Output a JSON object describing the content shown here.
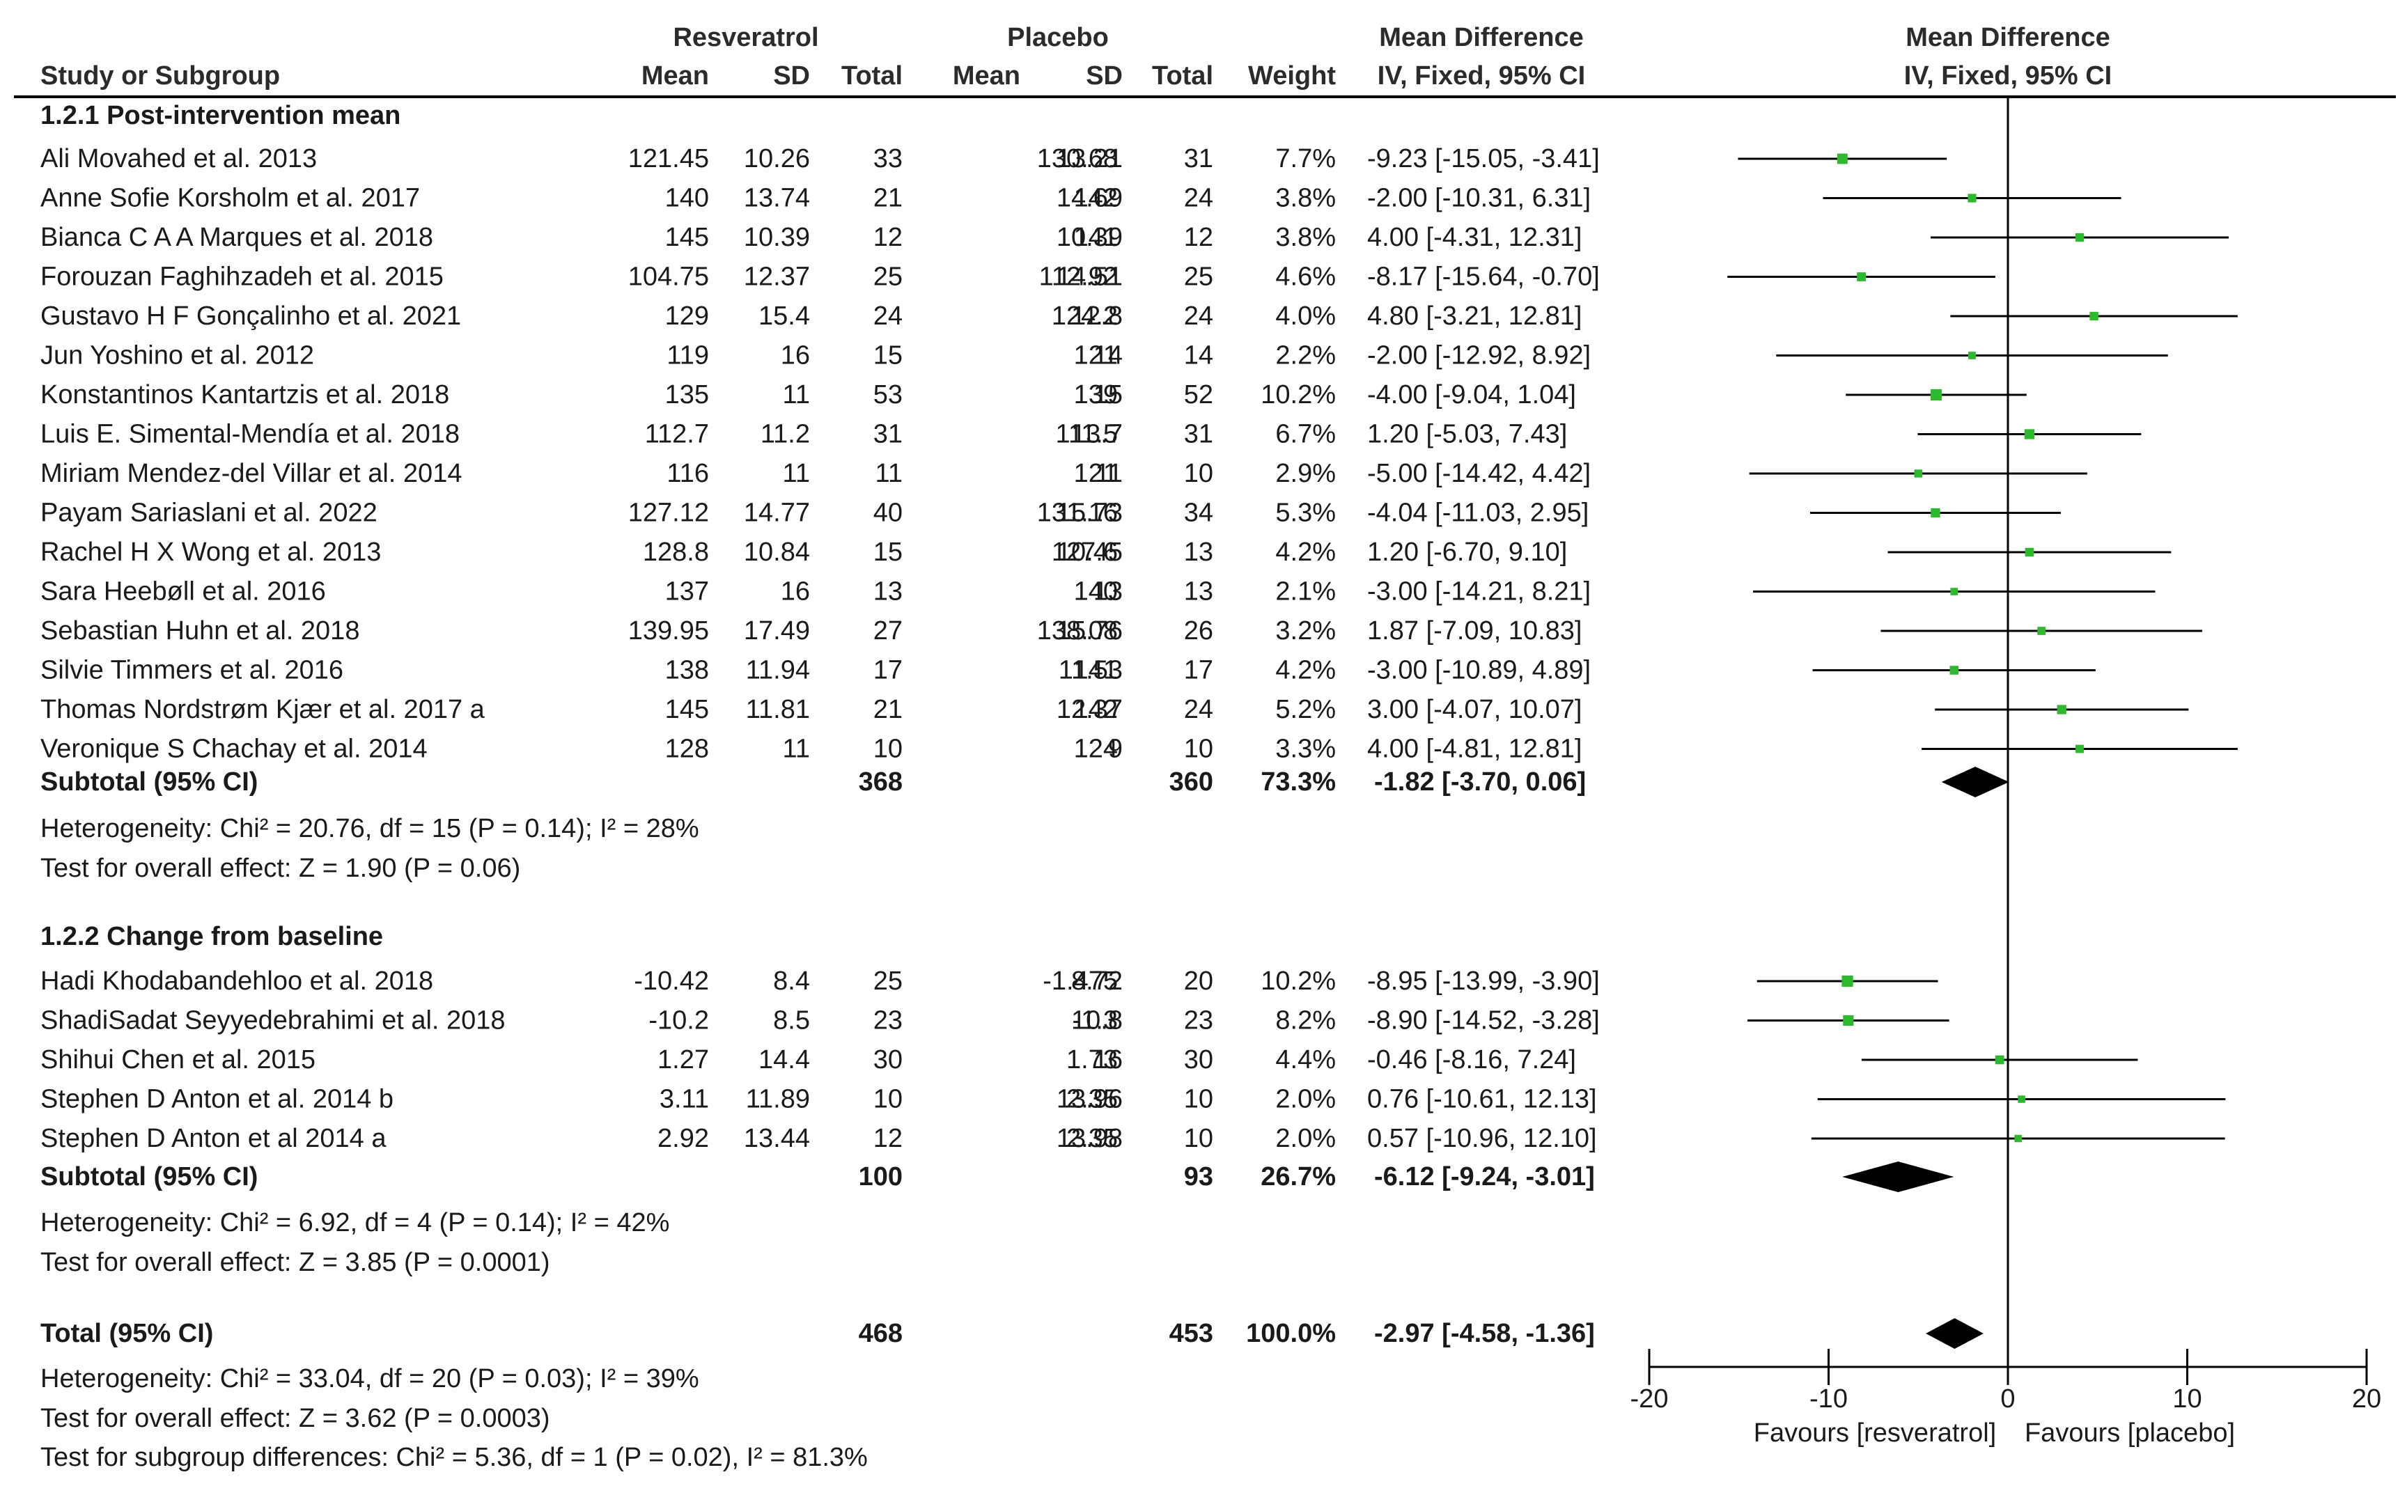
{
  "chart_data": {
    "type": "forest",
    "headers": {
      "study_col": "Study or Subgroup",
      "group1": "Resveratrol",
      "group2": "Placebo",
      "mean": "Mean",
      "sd": "SD",
      "total": "Total",
      "weight": "Weight",
      "md_table_title": "Mean Difference",
      "md_table_sub": "IV, Fixed, 95% CI",
      "md_plot_title": "Mean Difference",
      "md_plot_sub": "IV, Fixed, 95% CI"
    },
    "subgroups": [
      {
        "title": "1.2.1 Post-intervention mean",
        "studies": [
          {
            "name": "Ali Movahed et al. 2013",
            "m1": "121.45",
            "sd1": "10.26",
            "n1": "33",
            "m2": "130.68",
            "sd2": "13.21",
            "n2": "31",
            "weight": "7.7%",
            "ci": "-9.23 [-15.05, -3.41]",
            "md": -9.23,
            "lo": -15.05,
            "hi": -3.41,
            "w": 7.7
          },
          {
            "name": "Anne Sofie Korsholm et al. 2017",
            "m1": "140",
            "sd1": "13.74",
            "n1": "21",
            "m2": "142",
            "sd2": "14.69",
            "n2": "24",
            "weight": "3.8%",
            "ci": "-2.00 [-10.31, 6.31]",
            "md": -2.0,
            "lo": -10.31,
            "hi": 6.31,
            "w": 3.8
          },
          {
            "name": "Bianca C A A Marques et al. 2018",
            "m1": "145",
            "sd1": "10.39",
            "n1": "12",
            "m2": "141",
            "sd2": "10.39",
            "n2": "12",
            "weight": "3.8%",
            "ci": "4.00 [-4.31, 12.31]",
            "md": 4.0,
            "lo": -4.31,
            "hi": 12.31,
            "w": 3.8
          },
          {
            "name": "Forouzan Faghihzadeh et al. 2015",
            "m1": "104.75",
            "sd1": "12.37",
            "n1": "25",
            "m2": "112.92",
            "sd2": "14.51",
            "n2": "25",
            "weight": "4.6%",
            "ci": "-8.17 [-15.64, -0.70]",
            "md": -8.17,
            "lo": -15.64,
            "hi": -0.7,
            "w": 4.6
          },
          {
            "name": "Gustavo H F Gonçalinho et al. 2021",
            "m1": "129",
            "sd1": "15.4",
            "n1": "24",
            "m2": "124.2",
            "sd2": "12.8",
            "n2": "24",
            "weight": "4.0%",
            "ci": "4.80 [-3.21, 12.81]",
            "md": 4.8,
            "lo": -3.21,
            "hi": 12.81,
            "w": 4.0
          },
          {
            "name": "Jun Yoshino et al. 2012",
            "m1": "119",
            "sd1": "16",
            "n1": "15",
            "m2": "121",
            "sd2": "14",
            "n2": "14",
            "weight": "2.2%",
            "ci": "-2.00 [-12.92, 8.92]",
            "md": -2.0,
            "lo": -12.92,
            "hi": 8.92,
            "w": 2.2
          },
          {
            "name": "Konstantinos Kantartzis et al. 2018",
            "m1": "135",
            "sd1": "11",
            "n1": "53",
            "m2": "139",
            "sd2": "15",
            "n2": "52",
            "weight": "10.2%",
            "ci": "-4.00 [-9.04, 1.04]",
            "md": -4.0,
            "lo": -9.04,
            "hi": 1.04,
            "w": 10.2
          },
          {
            "name": "Luis E. Simental-Mendía et al. 2018",
            "m1": "112.7",
            "sd1": "11.2",
            "n1": "31",
            "m2": "111.5",
            "sd2": "13.7",
            "n2": "31",
            "weight": "6.7%",
            "ci": "1.20 [-5.03, 7.43]",
            "md": 1.2,
            "lo": -5.03,
            "hi": 7.43,
            "w": 6.7
          },
          {
            "name": "Miriam Mendez-del Villar et al. 2014",
            "m1": "116",
            "sd1": "11",
            "n1": "11",
            "m2": "121",
            "sd2": "11",
            "n2": "10",
            "weight": "2.9%",
            "ci": "-5.00 [-14.42, 4.42]",
            "md": -5.0,
            "lo": -14.42,
            "hi": 4.42,
            "w": 2.9
          },
          {
            "name": "Payam Sariaslani et al. 2022",
            "m1": "127.12",
            "sd1": "14.77",
            "n1": "40",
            "m2": "131.16",
            "sd2": "15.73",
            "n2": "34",
            "weight": "5.3%",
            "ci": "-4.04 [-11.03, 2.95]",
            "md": -4.04,
            "lo": -11.03,
            "hi": 2.95,
            "w": 5.3
          },
          {
            "name": "Rachel H X Wong et al. 2013",
            "m1": "128.8",
            "sd1": "10.84",
            "n1": "15",
            "m2": "127.6",
            "sd2": "10.45",
            "n2": "13",
            "weight": "4.2%",
            "ci": "1.20 [-6.70, 9.10]",
            "md": 1.2,
            "lo": -6.7,
            "hi": 9.1,
            "w": 4.2
          },
          {
            "name": "Sara Heebøll et al. 2016",
            "m1": "137",
            "sd1": "16",
            "n1": "13",
            "m2": "140",
            "sd2": "13",
            "n2": "13",
            "weight": "2.1%",
            "ci": "-3.00 [-14.21, 8.21]",
            "md": -3.0,
            "lo": -14.21,
            "hi": 8.21,
            "w": 2.1
          },
          {
            "name": "Sebastian Huhn et al. 2018",
            "m1": "139.95",
            "sd1": "17.49",
            "n1": "27",
            "m2": "138.08",
            "sd2": "15.76",
            "n2": "26",
            "weight": "3.2%",
            "ci": "1.87 [-7.09, 10.83]",
            "md": 1.87,
            "lo": -7.09,
            "hi": 10.83,
            "w": 3.2
          },
          {
            "name": "Silvie Timmers et al. 2016",
            "m1": "138",
            "sd1": "11.94",
            "n1": "17",
            "m2": "141",
            "sd2": "11.53",
            "n2": "17",
            "weight": "4.2%",
            "ci": "-3.00 [-10.89, 4.89]",
            "md": -3.0,
            "lo": -10.89,
            "hi": 4.89,
            "w": 4.2
          },
          {
            "name": "Thomas Nordstrøm Kjær et al. 2017 a",
            "m1": "145",
            "sd1": "11.81",
            "n1": "21",
            "m2": "142",
            "sd2": "12.37",
            "n2": "24",
            "weight": "5.2%",
            "ci": "3.00 [-4.07, 10.07]",
            "md": 3.0,
            "lo": -4.07,
            "hi": 10.07,
            "w": 5.2
          },
          {
            "name": "Veronique S Chachay et al. 2014",
            "m1": "128",
            "sd1": "11",
            "n1": "10",
            "m2": "124",
            "sd2": "9",
            "n2": "10",
            "weight": "3.3%",
            "ci": "4.00 [-4.81, 12.81]",
            "md": 4.0,
            "lo": -4.81,
            "hi": 12.81,
            "w": 3.3
          }
        ],
        "subtotal": {
          "label": "Subtotal (95% CI)",
          "n1": "368",
          "n2": "360",
          "weight": "73.3%",
          "ci": "-1.82 [-3.70, 0.06]",
          "md": -1.82,
          "lo": -3.7,
          "hi": 0.06
        },
        "heterogeneity": "Heterogeneity: Chi² = 20.76, df = 15 (P = 0.14); I² = 28%",
        "overall": "Test for overall effect: Z = 1.90 (P = 0.06)"
      },
      {
        "title": "1.2.2 Change from baseline",
        "studies": [
          {
            "name": "Hadi Khodabandehloo et al. 2018",
            "m1": "-10.42",
            "sd1": "8.4",
            "n1": "25",
            "m2": "-1.475",
            "sd2": "8.72",
            "n2": "20",
            "weight": "10.2%",
            "ci": "-8.95 [-13.99, -3.90]",
            "md": -8.95,
            "lo": -13.99,
            "hi": -3.9,
            "w": 10.2
          },
          {
            "name": "ShadiSadat Seyyedebrahimi et al. 2018",
            "m1": "-10.2",
            "sd1": "8.5",
            "n1": "23",
            "m2": "-1.3",
            "sd2": "10.8",
            "n2": "23",
            "weight": "8.2%",
            "ci": "-8.90 [-14.52, -3.28]",
            "md": -8.9,
            "lo": -14.52,
            "hi": -3.28,
            "w": 8.2
          },
          {
            "name": "Shihui Chen et al. 2015",
            "m1": "1.27",
            "sd1": "14.4",
            "n1": "30",
            "m2": "1.73",
            "sd2": "16",
            "n2": "30",
            "weight": "4.4%",
            "ci": "-0.46 [-8.16, 7.24]",
            "md": -0.46,
            "lo": -8.16,
            "hi": 7.24,
            "w": 4.4
          },
          {
            "name": "Stephen D Anton et al. 2014 b",
            "m1": "3.11",
            "sd1": "11.89",
            "n1": "10",
            "m2": "2.35",
            "sd2": "13.96",
            "n2": "10",
            "weight": "2.0%",
            "ci": "0.76 [-10.61, 12.13]",
            "md": 0.76,
            "lo": -10.61,
            "hi": 12.13,
            "w": 2.0
          },
          {
            "name": "Stephen D Anton et al 2014 a",
            "m1": "2.92",
            "sd1": "13.44",
            "n1": "12",
            "m2": "2.35",
            "sd2": "13.98",
            "n2": "10",
            "weight": "2.0%",
            "ci": "0.57 [-10.96, 12.10]",
            "md": 0.57,
            "lo": -10.96,
            "hi": 12.1,
            "w": 2.0
          }
        ],
        "subtotal": {
          "label": "Subtotal (95% CI)",
          "n1": "100",
          "n2": "93",
          "weight": "26.7%",
          "ci": "-6.12 [-9.24, -3.01]",
          "md": -6.12,
          "lo": -9.24,
          "hi": -3.01
        },
        "heterogeneity": "Heterogeneity: Chi² = 6.92, df = 4 (P = 0.14); I² = 42%",
        "overall": "Test for overall effect: Z = 3.85 (P = 0.0001)"
      }
    ],
    "total": {
      "label": "Total (95% CI)",
      "n1": "468",
      "n2": "453",
      "weight": "100.0%",
      "ci": "-2.97 [-4.58, -1.36]",
      "md": -2.97,
      "lo": -4.58,
      "hi": -1.36
    },
    "total_heterogeneity": "Heterogeneity: Chi² = 33.04, df = 20 (P = 0.03); I² = 39%",
    "total_overall": "Test for overall effect: Z = 3.62 (P = 0.0003)",
    "subgroup_differences": "Test for subgroup differences: Chi² = 5.36, df = 1 (P = 0.02), I² = 81.3%",
    "axis": {
      "xlim": [
        -20,
        20
      ],
      "ticks": [
        -20,
        -10,
        0,
        10,
        20
      ],
      "tick_labels": [
        "-20",
        "-10",
        "0",
        "10",
        "20"
      ],
      "favours_left": "Favours [resveratrol]",
      "favours_right": "Favours [placebo]"
    },
    "colors": {
      "square": "#2db82d",
      "diamond": "#000000",
      "line": "#000000"
    }
  }
}
